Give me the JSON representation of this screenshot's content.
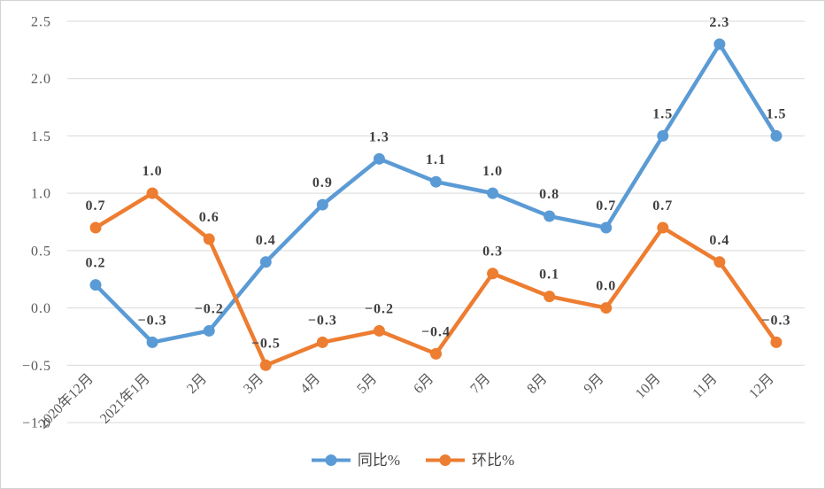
{
  "chart": {
    "background": "#ffffff",
    "border_color": "#d2d2d2",
    "gridline_color": "#d9d9d9",
    "axis_label_color": "#595959",
    "data_label_color": "#404040"
  },
  "chart_data": {
    "type": "line",
    "title": "",
    "xlabel": "",
    "ylabel": "",
    "categories": [
      "2020年12月",
      "2021年1月",
      "2月",
      "3月",
      "4月",
      "5月",
      "6月",
      "7月",
      "8月",
      "9月",
      "10月",
      "11月",
      "12月"
    ],
    "series": [
      {
        "name": "同比%",
        "color": "#5B9BD5",
        "values": [
          0.2,
          -0.3,
          -0.2,
          0.4,
          0.9,
          1.3,
          1.1,
          1.0,
          0.8,
          0.7,
          1.5,
          2.3,
          1.5
        ]
      },
      {
        "name": "环比%",
        "color": "#ED7D31",
        "values": [
          0.7,
          1.0,
          0.6,
          -0.5,
          -0.3,
          -0.2,
          -0.4,
          0.3,
          0.1,
          0.0,
          0.7,
          0.4,
          -0.3
        ]
      }
    ],
    "ylim": [
      -1.0,
      2.5
    ],
    "yticks": [
      2.5,
      2.0,
      1.5,
      1.0,
      0.5,
      0.0,
      -0.5,
      -1.0
    ],
    "grid": true,
    "marker": "circle",
    "data_labels": true,
    "x_label_rotation_deg": 45,
    "legend_position": "bottom"
  },
  "legend": {
    "items": [
      {
        "label": "同比%",
        "color": "#5B9BD5"
      },
      {
        "label": "环比%",
        "color": "#ED7D31"
      }
    ]
  }
}
